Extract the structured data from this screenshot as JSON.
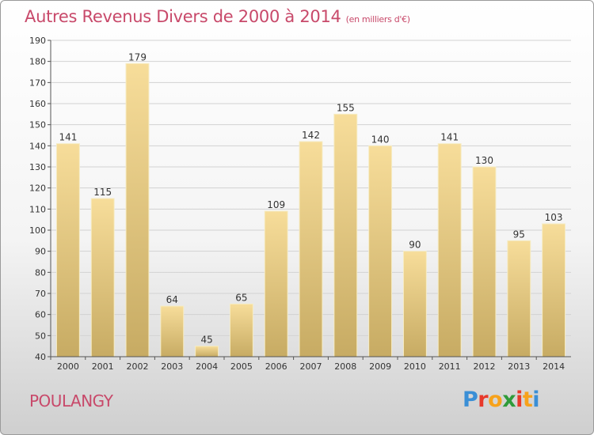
{
  "header": {
    "title": "Autres Revenus Divers de 2000 à 2014",
    "unit": "(en milliers d'€)"
  },
  "footer": {
    "commune": "POULANGY",
    "logo_letters": [
      "P",
      "r",
      "o",
      "x",
      "i",
      "t",
      "i"
    ],
    "logo_colors": [
      "#3a8fd6",
      "#e8392b",
      "#f7a21b",
      "#2f9b3a",
      "#e8392b",
      "#f7a21b",
      "#3a8fd6"
    ]
  },
  "chart_data": {
    "type": "bar",
    "title": "Autres Revenus Divers de 2000 à 2014",
    "unit": "(en milliers d'€)",
    "categories": [
      "2000",
      "2001",
      "2002",
      "2003",
      "2004",
      "2005",
      "2006",
      "2007",
      "2008",
      "2009",
      "2010",
      "2011",
      "2012",
      "2013",
      "2014"
    ],
    "values": [
      141,
      115,
      179,
      64,
      45,
      65,
      109,
      142,
      155,
      140,
      90,
      141,
      130,
      95,
      103
    ],
    "ylim": [
      40,
      190
    ],
    "yticks": [
      40,
      50,
      60,
      70,
      80,
      90,
      100,
      110,
      120,
      130,
      140,
      150,
      160,
      170,
      180,
      190
    ],
    "grid": true,
    "colors": {
      "bar_top": "#f7dd9a",
      "bar_bottom": "#c7ab63",
      "grid": "#d2d2d2",
      "axis": "#555555"
    }
  }
}
